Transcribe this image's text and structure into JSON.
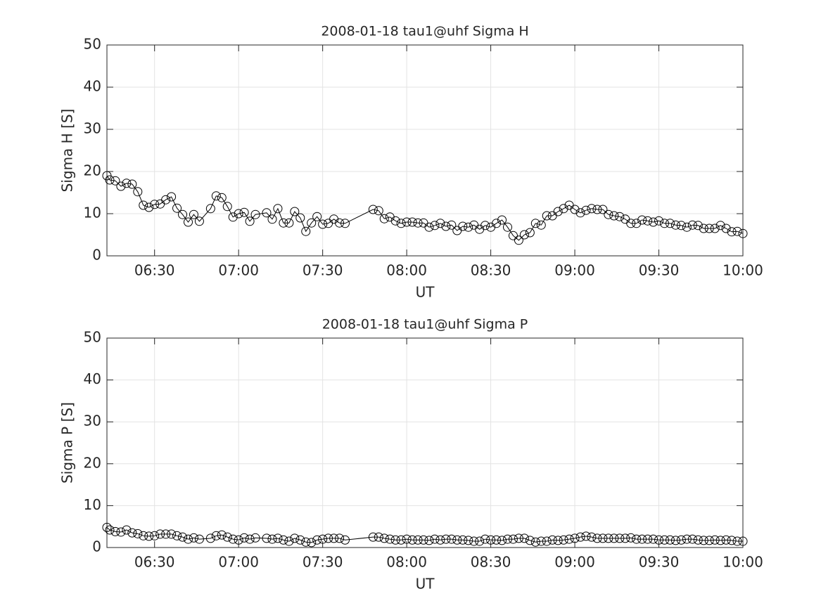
{
  "chart_data": [
    {
      "type": "line",
      "title": "2008-01-18  tau1@uhf Sigma H",
      "x_label": "UT",
      "y_label": "Sigma H [S]",
      "x": [
        "06:13",
        "06:14",
        "06:16",
        "06:18",
        "06:20",
        "06:22",
        "06:24",
        "06:26",
        "06:28",
        "06:30",
        "06:32",
        "06:34",
        "06:36",
        "06:38",
        "06:40",
        "06:42",
        "06:44",
        "06:46",
        "06:50",
        "06:52",
        "06:54",
        "06:56",
        "06:58",
        "07:00",
        "07:02",
        "07:04",
        "07:06",
        "07:10",
        "07:12",
        "07:14",
        "07:16",
        "07:18",
        "07:20",
        "07:22",
        "07:24",
        "07:26",
        "07:28",
        "07:30",
        "07:32",
        "07:34",
        "07:36",
        "07:38",
        "07:48",
        "07:50",
        "07:52",
        "07:54",
        "07:56",
        "07:58",
        "08:00",
        "08:02",
        "08:04",
        "08:06",
        "08:08",
        "08:10",
        "08:12",
        "08:14",
        "08:16",
        "08:18",
        "08:20",
        "08:22",
        "08:24",
        "08:26",
        "08:28",
        "08:30",
        "08:32",
        "08:34",
        "08:36",
        "08:38",
        "08:40",
        "08:42",
        "08:44",
        "08:46",
        "08:48",
        "08:50",
        "08:52",
        "08:54",
        "08:56",
        "08:58",
        "09:00",
        "09:02",
        "09:04",
        "09:06",
        "09:08",
        "09:10",
        "09:12",
        "09:14",
        "09:16",
        "09:18",
        "09:20",
        "09:22",
        "09:24",
        "09:26",
        "09:28",
        "09:30",
        "09:32",
        "09:34",
        "09:36",
        "09:38",
        "09:40",
        "09:42",
        "09:44",
        "09:46",
        "09:48",
        "09:50",
        "09:52",
        "09:54",
        "09:56",
        "09:58",
        "10:00"
      ],
      "values": [
        19.0,
        18.0,
        17.8,
        16.5,
        17.2,
        17.0,
        15.2,
        12.0,
        11.5,
        12.2,
        12.3,
        13.3,
        14.0,
        11.3,
        9.8,
        8.0,
        9.8,
        8.2,
        11.2,
        14.2,
        13.8,
        11.7,
        9.2,
        10.0,
        10.3,
        8.2,
        9.8,
        10.2,
        8.7,
        11.2,
        7.8,
        7.8,
        10.5,
        9.0,
        5.8,
        7.8,
        9.3,
        7.5,
        7.7,
        8.7,
        7.8,
        7.7,
        11.0,
        10.7,
        8.8,
        9.2,
        8.3,
        7.7,
        8.0,
        8.0,
        7.8,
        7.8,
        6.8,
        7.2,
        7.7,
        7.0,
        7.3,
        6.0,
        7.0,
        6.8,
        7.3,
        6.3,
        7.2,
        6.8,
        7.7,
        8.5,
        6.8,
        4.8,
        3.7,
        5.0,
        5.5,
        7.7,
        7.3,
        9.5,
        9.5,
        10.5,
        11.2,
        12.0,
        11.0,
        10.2,
        10.8,
        11.2,
        11.0,
        11.0,
        9.8,
        9.5,
        9.3,
        8.7,
        7.7,
        7.7,
        8.5,
        8.3,
        8.0,
        8.3,
        7.7,
        7.7,
        7.3,
        7.2,
        6.8,
        7.3,
        7.2,
        6.5,
        6.5,
        6.5,
        7.2,
        6.5,
        5.7,
        5.8,
        5.3
      ],
      "color": "#000000",
      "xlim": [
        "06:13",
        "10:00"
      ],
      "xticks": [
        "06:30",
        "07:00",
        "07:30",
        "08:00",
        "08:30",
        "09:00",
        "09:30",
        "10:00"
      ],
      "ylim": [
        0,
        50
      ],
      "yticks": [
        0,
        10,
        20,
        30,
        40,
        50
      ],
      "grid": true
    },
    {
      "type": "line",
      "title": "2008-01-18  tau1@uhf Sigma P",
      "x_label": "UT",
      "y_label": "Sigma P [S]",
      "x": [
        "06:13",
        "06:14",
        "06:16",
        "06:18",
        "06:20",
        "06:22",
        "06:24",
        "06:26",
        "06:28",
        "06:30",
        "06:32",
        "06:34",
        "06:36",
        "06:38",
        "06:40",
        "06:42",
        "06:44",
        "06:46",
        "06:50",
        "06:52",
        "06:54",
        "06:56",
        "06:58",
        "07:00",
        "07:02",
        "07:04",
        "07:06",
        "07:10",
        "07:12",
        "07:14",
        "07:16",
        "07:18",
        "07:20",
        "07:22",
        "07:24",
        "07:26",
        "07:28",
        "07:30",
        "07:32",
        "07:34",
        "07:36",
        "07:38",
        "07:48",
        "07:50",
        "07:52",
        "07:54",
        "07:56",
        "07:58",
        "08:00",
        "08:02",
        "08:04",
        "08:06",
        "08:08",
        "08:10",
        "08:12",
        "08:14",
        "08:16",
        "08:18",
        "08:20",
        "08:22",
        "08:24",
        "08:26",
        "08:28",
        "08:30",
        "08:32",
        "08:34",
        "08:36",
        "08:38",
        "08:40",
        "08:42",
        "08:44",
        "08:46",
        "08:48",
        "08:50",
        "08:52",
        "08:54",
        "08:56",
        "08:58",
        "09:00",
        "09:02",
        "09:04",
        "09:06",
        "09:08",
        "09:10",
        "09:12",
        "09:14",
        "09:16",
        "09:18",
        "09:20",
        "09:22",
        "09:24",
        "09:26",
        "09:28",
        "09:30",
        "09:32",
        "09:34",
        "09:36",
        "09:38",
        "09:40",
        "09:42",
        "09:44",
        "09:46",
        "09:48",
        "09:50",
        "09:52",
        "09:54",
        "09:56",
        "09:58",
        "10:00"
      ],
      "values": [
        4.8,
        4.2,
        3.8,
        3.7,
        4.2,
        3.5,
        3.3,
        2.8,
        2.7,
        2.8,
        3.2,
        3.2,
        3.2,
        2.8,
        2.5,
        2.0,
        2.3,
        2.0,
        2.2,
        2.8,
        3.0,
        2.5,
        2.0,
        1.8,
        2.3,
        2.0,
        2.3,
        2.2,
        2.0,
        2.2,
        1.8,
        1.5,
        2.2,
        1.8,
        1.3,
        1.2,
        1.8,
        2.0,
        2.2,
        2.2,
        2.2,
        1.8,
        2.5,
        2.5,
        2.2,
        2.0,
        1.8,
        1.8,
        2.0,
        1.8,
        1.8,
        1.8,
        1.7,
        2.0,
        1.8,
        2.0,
        2.0,
        1.8,
        1.8,
        1.7,
        1.5,
        1.5,
        2.0,
        1.8,
        1.8,
        1.7,
        2.0,
        2.0,
        2.2,
        2.2,
        1.7,
        1.3,
        1.5,
        1.5,
        1.8,
        1.7,
        1.8,
        2.0,
        2.2,
        2.5,
        2.7,
        2.5,
        2.2,
        2.2,
        2.2,
        2.2,
        2.2,
        2.2,
        2.3,
        2.0,
        2.0,
        2.0,
        2.0,
        1.8,
        1.8,
        1.8,
        1.7,
        1.8,
        2.0,
        2.0,
        1.8,
        1.7,
        1.7,
        1.8,
        1.7,
        1.8,
        1.7,
        1.5,
        1.5
      ],
      "color": "#000000",
      "xlim": [
        "06:13",
        "10:00"
      ],
      "xticks": [
        "06:30",
        "07:00",
        "07:30",
        "08:00",
        "08:30",
        "09:00",
        "09:30",
        "10:00"
      ],
      "ylim": [
        0,
        50
      ],
      "yticks": [
        0,
        10,
        20,
        30,
        40,
        50
      ],
      "grid": true
    }
  ]
}
